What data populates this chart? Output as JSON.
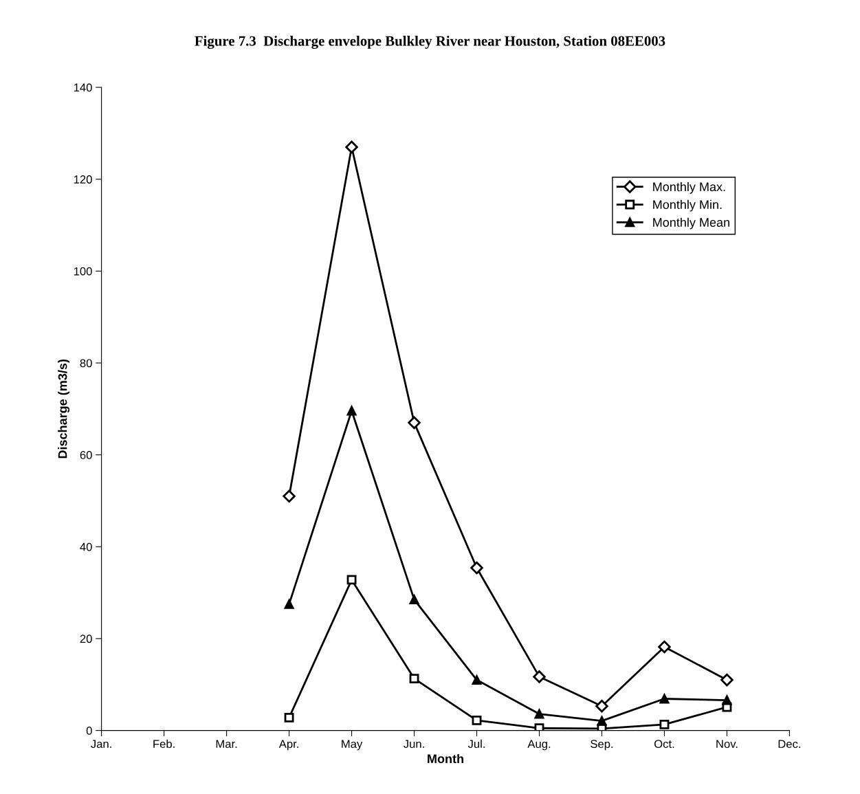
{
  "chart_data": {
    "type": "line",
    "title": "Figure 7.3  Discharge envelope Bulkley River near Houston, Station 08EE003",
    "xlabel": "Month",
    "ylabel": "Discharge (m3/s)",
    "categories": [
      "Jan.",
      "Feb.",
      "Mar.",
      "Apr.",
      "May",
      "Jun.",
      "Jul.",
      "Aug.",
      "Sep.",
      "Oct.",
      "Nov.",
      "Dec."
    ],
    "series": [
      {
        "name": "Monthly Max.",
        "color": "#000000",
        "marker": "diamond",
        "values": [
          null,
          null,
          null,
          51.0,
          127,
          67,
          35.4,
          11.7,
          5.3,
          18.2,
          11,
          null
        ]
      },
      {
        "name": "Monthly Min.",
        "color": "#000000",
        "marker": "square",
        "values": [
          null,
          null,
          null,
          2.8,
          32.8,
          11.3,
          2.2,
          0.5,
          0.4,
          1.3,
          5.1,
          null
        ]
      },
      {
        "name": "Monthly Mean",
        "color": "#000000",
        "marker": "triangle",
        "values": [
          null,
          null,
          null,
          27.5,
          69.6,
          28.5,
          11,
          3.6,
          2.1,
          6.9,
          6.6,
          null
        ]
      }
    ],
    "ylim": [
      0,
      140
    ],
    "yticks": [
      0,
      20,
      40,
      60,
      80,
      100,
      120,
      140
    ],
    "grid": false,
    "legend": "top right",
    "line_style": "solid"
  }
}
